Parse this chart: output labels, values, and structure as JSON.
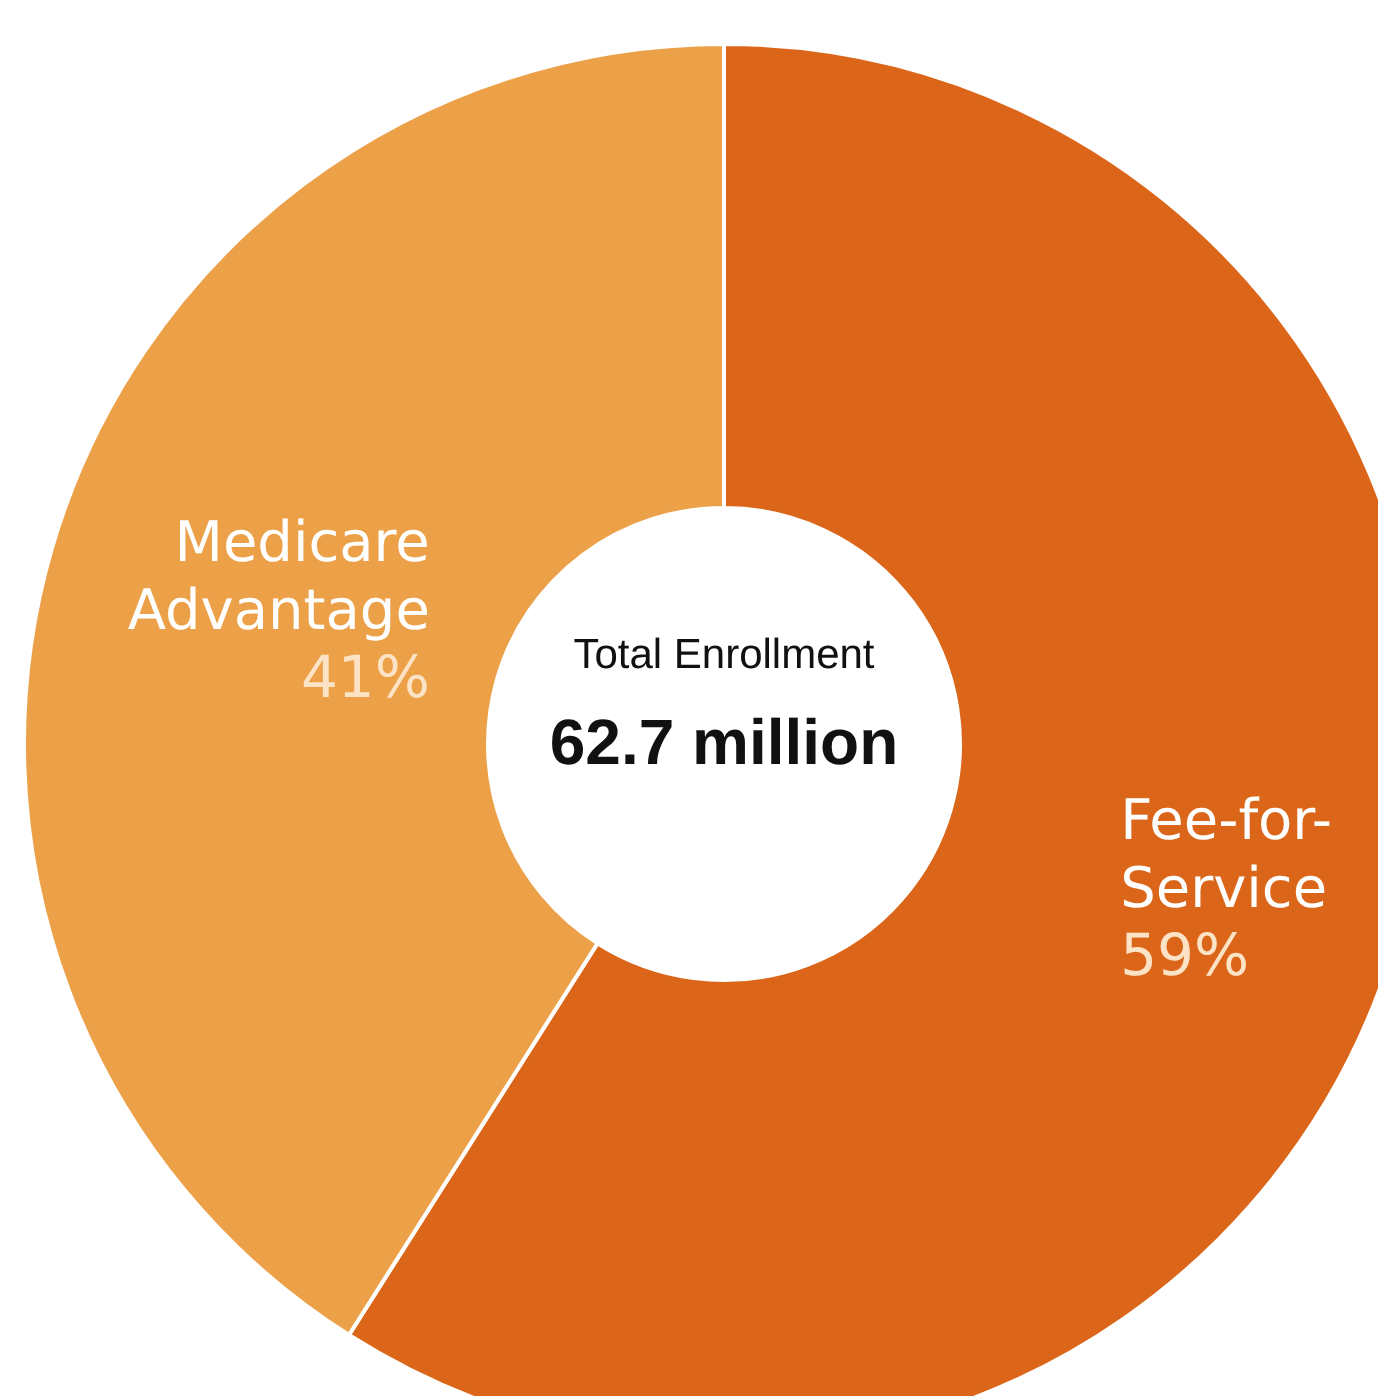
{
  "chart_data": {
    "type": "donut",
    "categories": [
      "Fee-for-Service",
      "Medicare Advantage"
    ],
    "values": [
      59,
      41
    ],
    "colors": [
      "#db6619",
      "#eca048"
    ],
    "value_labels": [
      "59%",
      "41%"
    ],
    "annotations": [
      "Total Enrollment",
      "62.7 million"
    ],
    "legend": false
  }
}
